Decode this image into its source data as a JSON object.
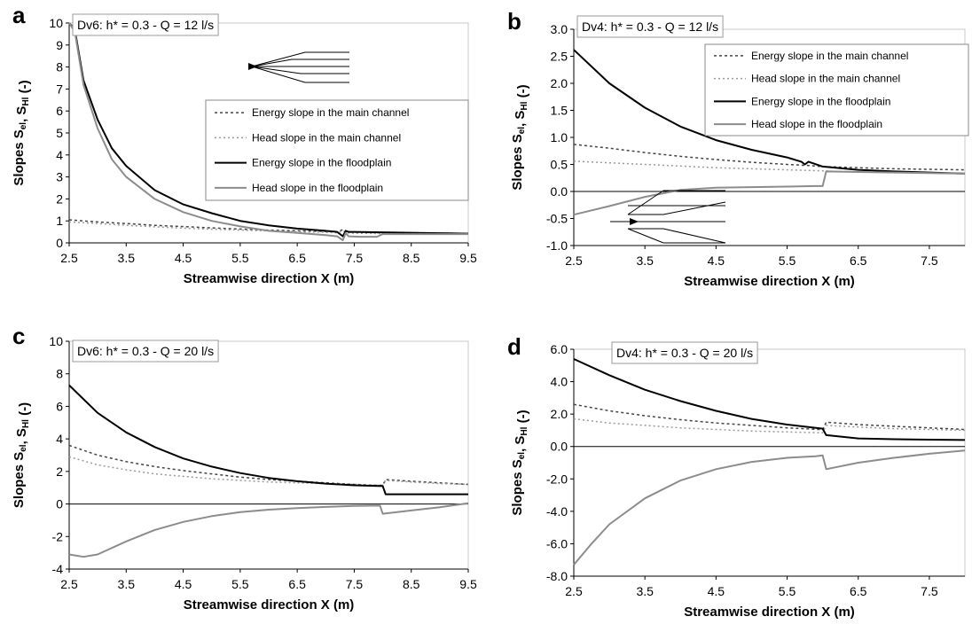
{
  "chart_data": [
    {
      "type": "line",
      "panel_label": "a",
      "condition": "Dv6: h* = 0.3 - Q = 12 l/s",
      "xlabel": "Streamwise direction X (m)",
      "ylabel_prefix": "Slopes",
      "ylabel_terms": [
        {
          "base": "S",
          "sub": "el"
        },
        {
          "sep": ", "
        },
        {
          "base": "S",
          "sub": "Hl"
        }
      ],
      "ylabel_unit": "(-)",
      "xlim": [
        2.5,
        9.5
      ],
      "ylim": [
        0,
        10
      ],
      "xticks": [
        "2.5",
        "3.5",
        "4.5",
        "5.5",
        "6.5",
        "7.5",
        "8.5",
        "9.5"
      ],
      "yticks": [
        "0",
        "1",
        "2",
        "3",
        "4",
        "5",
        "6",
        "7",
        "8",
        "9",
        "10"
      ],
      "legend": true,
      "legend_position": "right",
      "inset_schematic": "right-top",
      "series": [
        {
          "name": "Energy slope in the main channel",
          "color": "#444444",
          "dash": "3,3",
          "width": 1.5,
          "x": [
            2.5,
            3.0,
            3.5,
            4.0,
            4.5,
            5.0,
            5.5,
            6.0,
            6.5,
            7.0,
            7.2,
            7.3,
            7.4,
            7.5,
            8.0,
            8.5,
            9.0,
            9.5
          ],
          "y": [
            1.05,
            0.95,
            0.88,
            0.8,
            0.74,
            0.68,
            0.63,
            0.58,
            0.55,
            0.52,
            0.5,
            0.6,
            0.5,
            0.48,
            0.46,
            0.45,
            0.44,
            0.43
          ]
        },
        {
          "name": "Head slope in the main channel",
          "color": "#9a9a9a",
          "dash": "2,3",
          "width": 1.5,
          "x": [
            2.5,
            3.0,
            3.5,
            4.0,
            4.5,
            5.0,
            5.5,
            6.0,
            6.5,
            7.0,
            7.2,
            7.3,
            7.4,
            7.5,
            8.0,
            8.5,
            9.0,
            9.5
          ],
          "y": [
            0.95,
            0.88,
            0.8,
            0.73,
            0.67,
            0.62,
            0.58,
            0.54,
            0.5,
            0.48,
            0.46,
            0.55,
            0.45,
            0.44,
            0.42,
            0.41,
            0.41,
            0.4
          ]
        },
        {
          "name": "Energy slope in the floodplain",
          "color": "#000000",
          "dash": "",
          "width": 2,
          "x": [
            2.5,
            2.6,
            2.75,
            3.0,
            3.25,
            3.5,
            4.0,
            4.5,
            5.0,
            5.5,
            6.0,
            6.5,
            7.0,
            7.2,
            7.3,
            7.35,
            7.4,
            7.5,
            8.0,
            8.5,
            9.0,
            9.5
          ],
          "y": [
            10,
            9.7,
            7.4,
            5.6,
            4.3,
            3.5,
            2.4,
            1.75,
            1.35,
            1.0,
            0.8,
            0.65,
            0.55,
            0.5,
            0.3,
            0.55,
            0.5,
            0.5,
            0.48,
            0.46,
            0.44,
            0.42
          ]
        },
        {
          "name": "Head slope in the floodplain",
          "color": "#8c8c8c",
          "dash": "",
          "width": 2,
          "x": [
            2.5,
            2.6,
            2.75,
            3.0,
            3.25,
            3.5,
            4.0,
            4.5,
            5.0,
            5.5,
            6.0,
            6.5,
            7.0,
            7.2,
            7.3,
            7.35,
            7.4,
            7.6,
            7.9,
            8.0,
            8.5,
            9.0,
            9.5
          ],
          "y": [
            10,
            9.6,
            7.2,
            5.2,
            3.8,
            3.0,
            2.0,
            1.4,
            1.0,
            0.75,
            0.55,
            0.45,
            0.35,
            0.3,
            0.12,
            0.45,
            0.3,
            0.28,
            0.28,
            0.4,
            0.4,
            0.4,
            0.4
          ]
        }
      ]
    },
    {
      "type": "line",
      "panel_label": "b",
      "condition": "Dv4: h* = 0.3 - Q = 12 l/s",
      "xlabel": "Streamwise direction X (m)",
      "ylabel_prefix": "Slopes",
      "ylabel_terms": [
        {
          "base": "S",
          "sub": "el"
        },
        {
          "sep": ", "
        },
        {
          "base": "S",
          "sub": "Hl"
        }
      ],
      "ylabel_unit": "(-)",
      "xlim": [
        2.5,
        8.0
      ],
      "ylim": [
        -1.0,
        3.0
      ],
      "xticks": [
        "2.5",
        "3.5",
        "4.5",
        "5.5",
        "6.5",
        "7.5"
      ],
      "yticks": [
        "-1.0",
        "-0.5",
        "0.0",
        "0.5",
        "1.0",
        "1.5",
        "2.0",
        "2.5",
        "3.0"
      ],
      "legend": true,
      "legend_position": "top-right",
      "inset_schematic": "left-bottom",
      "series": [
        {
          "name": "Energy slope in the main channel",
          "color": "#444444",
          "dash": "3,3",
          "width": 1.5,
          "x": [
            2.5,
            3.0,
            3.5,
            4.0,
            4.5,
            5.0,
            5.5,
            5.8,
            6.0,
            6.5,
            7.0,
            7.5,
            8.0
          ],
          "y": [
            0.87,
            0.8,
            0.72,
            0.65,
            0.59,
            0.54,
            0.5,
            0.48,
            0.46,
            0.44,
            0.42,
            0.41,
            0.4
          ]
        },
        {
          "name": "Head slope in the main channel",
          "color": "#9a9a9a",
          "dash": "2,3",
          "width": 1.5,
          "x": [
            2.5,
            3.0,
            3.5,
            4.0,
            4.5,
            5.0,
            5.5,
            5.8,
            6.0,
            6.5,
            7.0,
            7.5,
            8.0
          ],
          "y": [
            0.56,
            0.53,
            0.5,
            0.47,
            0.44,
            0.42,
            0.4,
            0.39,
            0.38,
            0.36,
            0.35,
            0.34,
            0.33
          ]
        },
        {
          "name": "Energy slope in the floodplain",
          "color": "#000000",
          "dash": "",
          "width": 2,
          "x": [
            2.5,
            3.0,
            3.5,
            4.0,
            4.5,
            5.0,
            5.5,
            5.7,
            5.75,
            5.8,
            6.0,
            6.5,
            7.0,
            7.5,
            8.0
          ],
          "y": [
            2.62,
            2.0,
            1.55,
            1.2,
            0.95,
            0.77,
            0.63,
            0.55,
            0.5,
            0.55,
            0.46,
            0.4,
            0.37,
            0.35,
            0.33
          ]
        },
        {
          "name": "Head slope in the floodplain",
          "color": "#8c8c8c",
          "dash": "",
          "width": 2,
          "x": [
            2.5,
            3.0,
            3.5,
            4.0,
            4.5,
            5.0,
            5.5,
            5.9,
            6.0,
            6.05,
            6.5,
            7.0,
            7.5,
            8.0
          ],
          "y": [
            -0.43,
            -0.27,
            -0.1,
            0.03,
            0.07,
            0.08,
            0.09,
            0.1,
            0.1,
            0.37,
            0.36,
            0.35,
            0.34,
            0.33
          ]
        }
      ]
    },
    {
      "type": "line",
      "panel_label": "c",
      "condition": "Dv6: h* = 0.3 - Q = 20 l/s",
      "xlabel": "Streamwise direction X (m)",
      "ylabel_prefix": "Slopes",
      "ylabel_terms": [
        {
          "base": "S",
          "sub": "el"
        },
        {
          "sep": ", "
        },
        {
          "base": "S",
          "sub": "Hl"
        }
      ],
      "ylabel_unit": "(-)",
      "xlim": [
        2.5,
        9.5
      ],
      "ylim": [
        -4,
        10
      ],
      "xticks": [
        "2.5",
        "3.5",
        "4.5",
        "5.5",
        "6.5",
        "7.5",
        "8.5",
        "9.5"
      ],
      "yticks": [
        "-4",
        "-2",
        "0",
        "2",
        "4",
        "6",
        "8",
        "10"
      ],
      "legend": false,
      "series": [
        {
          "name": "Energy slope in the main channel",
          "color": "#444444",
          "dash": "3,3",
          "width": 1.5,
          "x": [
            2.5,
            3.0,
            3.5,
            4.0,
            4.5,
            5.0,
            5.5,
            6.0,
            6.5,
            7.0,
            7.5,
            7.9,
            8.0,
            8.05,
            8.5,
            9.0,
            9.5
          ],
          "y": [
            3.6,
            3.0,
            2.6,
            2.3,
            2.05,
            1.85,
            1.65,
            1.5,
            1.4,
            1.3,
            1.2,
            1.15,
            1.15,
            1.5,
            1.4,
            1.3,
            1.2
          ]
        },
        {
          "name": "Head slope in the main channel",
          "color": "#9a9a9a",
          "dash": "2,3",
          "width": 1.5,
          "x": [
            2.5,
            3.0,
            3.5,
            4.0,
            4.5,
            5.0,
            5.5,
            6.0,
            6.5,
            7.0,
            7.5,
            7.9,
            8.0,
            8.05,
            8.5,
            9.0,
            9.5
          ],
          "y": [
            2.9,
            2.4,
            2.1,
            1.85,
            1.7,
            1.55,
            1.45,
            1.35,
            1.3,
            1.25,
            1.2,
            1.15,
            1.15,
            1.45,
            1.35,
            1.25,
            1.2
          ]
        },
        {
          "name": "Energy slope in the floodplain",
          "color": "#000000",
          "dash": "",
          "width": 2,
          "x": [
            2.5,
            3.0,
            3.5,
            4.0,
            4.5,
            5.0,
            5.5,
            6.0,
            6.5,
            7.0,
            7.5,
            8.0,
            8.05,
            8.5,
            9.0,
            9.5
          ],
          "y": [
            7.3,
            5.6,
            4.4,
            3.5,
            2.8,
            2.3,
            1.9,
            1.6,
            1.4,
            1.25,
            1.15,
            1.1,
            0.6,
            0.6,
            0.6,
            0.6
          ]
        },
        {
          "name": "Head slope in the floodplain",
          "color": "#8c8c8c",
          "dash": "",
          "width": 2,
          "x": [
            2.5,
            2.75,
            3.0,
            3.5,
            4.0,
            4.5,
            5.0,
            5.5,
            6.0,
            6.5,
            7.0,
            7.5,
            7.95,
            8.0,
            8.5,
            9.0,
            9.5
          ],
          "y": [
            -3.1,
            -3.25,
            -3.1,
            -2.3,
            -1.6,
            -1.1,
            -0.75,
            -0.5,
            -0.35,
            -0.25,
            -0.18,
            -0.12,
            -0.1,
            -0.6,
            -0.4,
            -0.2,
            0.05
          ]
        }
      ]
    },
    {
      "type": "line",
      "panel_label": "d",
      "condition": "Dv4: h* = 0.3 - Q = 20 l/s",
      "xlabel": "Streamwise direction X (m)",
      "ylabel_prefix": "Slopes",
      "ylabel_terms": [
        {
          "base": "S",
          "sub": "el"
        },
        {
          "sep": ", "
        },
        {
          "base": "S",
          "sub": "Hl"
        }
      ],
      "ylabel_unit": "(-)",
      "xlim": [
        2.5,
        8.0
      ],
      "ylim": [
        -8.0,
        6.0
      ],
      "xticks": [
        "2.5",
        "3.5",
        "4.5",
        "5.5",
        "6.5",
        "7.5"
      ],
      "yticks": [
        "-8.0",
        "-6.0",
        "-4.0",
        "-2.0",
        "0.0",
        "2.0",
        "4.0",
        "6.0"
      ],
      "legend": false,
      "series": [
        {
          "name": "Energy slope in the main channel",
          "color": "#444444",
          "dash": "3,3",
          "width": 1.5,
          "x": [
            2.5,
            3.0,
            3.5,
            4.0,
            4.5,
            5.0,
            5.5,
            5.95,
            6.0,
            6.05,
            6.5,
            7.0,
            7.5,
            8.0
          ],
          "y": [
            2.6,
            2.2,
            1.9,
            1.65,
            1.45,
            1.3,
            1.15,
            1.05,
            1.05,
            1.5,
            1.35,
            1.25,
            1.15,
            1.05
          ]
        },
        {
          "name": "Head slope in the main channel",
          "color": "#9a9a9a",
          "dash": "2,3",
          "width": 1.5,
          "x": [
            2.5,
            3.0,
            3.5,
            4.0,
            4.5,
            5.0,
            5.5,
            5.95,
            6.0,
            6.05,
            6.5,
            7.0,
            7.5,
            8.0
          ],
          "y": [
            1.7,
            1.45,
            1.3,
            1.15,
            1.05,
            0.95,
            0.9,
            0.85,
            0.85,
            1.3,
            1.2,
            1.1,
            1.05,
            1.0
          ]
        },
        {
          "name": "Energy slope in the floodplain",
          "color": "#000000",
          "dash": "",
          "width": 2,
          "x": [
            2.5,
            3.0,
            3.5,
            4.0,
            4.5,
            5.0,
            5.5,
            6.0,
            6.05,
            6.5,
            7.0,
            7.5,
            8.0
          ],
          "y": [
            5.4,
            4.4,
            3.5,
            2.8,
            2.2,
            1.7,
            1.35,
            1.1,
            0.7,
            0.5,
            0.45,
            0.42,
            0.4
          ]
        },
        {
          "name": "Head slope in the floodplain",
          "color": "#8c8c8c",
          "dash": "",
          "width": 2,
          "x": [
            2.5,
            2.75,
            3.0,
            3.5,
            4.0,
            4.5,
            5.0,
            5.5,
            5.9,
            6.0,
            6.05,
            6.5,
            7.0,
            7.5,
            8.0
          ],
          "y": [
            -7.3,
            -6.0,
            -4.8,
            -3.2,
            -2.1,
            -1.4,
            -0.95,
            -0.7,
            -0.6,
            -0.55,
            -1.4,
            -1.0,
            -0.7,
            -0.45,
            -0.25
          ]
        }
      ]
    }
  ]
}
